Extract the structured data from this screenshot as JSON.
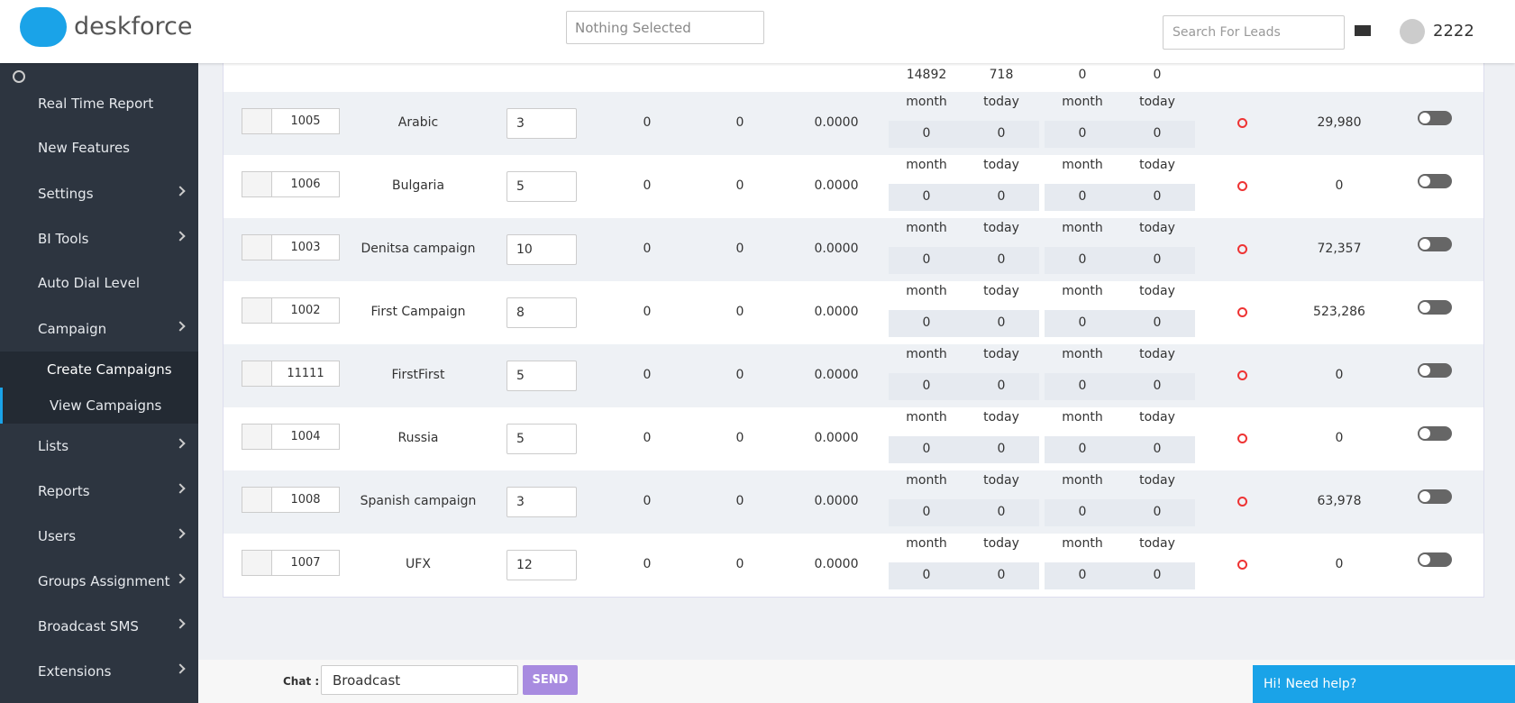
{
  "header": {
    "logo": "deskforce",
    "select": "Nothing Selected",
    "search_placeholder": "Search For Leads",
    "user": "2222"
  },
  "sidebar": {
    "items": [
      {
        "label": "Real Time Report",
        "submenu": false
      },
      {
        "label": "New Features",
        "submenu": false
      },
      {
        "label": "Settings",
        "submenu": true
      },
      {
        "label": "BI Tools",
        "submenu": true
      },
      {
        "label": "Auto Dial Level",
        "submenu": false
      },
      {
        "label": "Campaign",
        "submenu": true
      },
      {
        "label": "Create Campaigns",
        "sub": true
      },
      {
        "label": "View Campaigns",
        "sub": true
      },
      {
        "label": "Lists",
        "submenu": true
      },
      {
        "label": "Reports",
        "submenu": true
      },
      {
        "label": "Users",
        "submenu": true
      },
      {
        "label": "Groups Assignment",
        "submenu": true
      },
      {
        "label": "Broadcast SMS",
        "submenu": true
      },
      {
        "label": "Extensions",
        "submenu": true
      }
    ]
  },
  "table": {
    "sublabels": [
      "month",
      "today",
      "month",
      "today"
    ],
    "partial_row": {
      "values": [
        "14892",
        "718",
        "0",
        "0"
      ]
    },
    "rows": [
      {
        "id": "1005",
        "name": "Arabic",
        "level": "3",
        "c1": "0",
        "c2": "0",
        "c3": "0.0000",
        "v": [
          "0",
          "0",
          "0",
          "0"
        ],
        "leads": "29,980"
      },
      {
        "id": "1006",
        "name": "Bulgaria",
        "level": "5",
        "c1": "0",
        "c2": "0",
        "c3": "0.0000",
        "v": [
          "0",
          "0",
          "0",
          "0"
        ],
        "leads": "0"
      },
      {
        "id": "1003",
        "name": "Denitsa campaign",
        "level": "10",
        "c1": "0",
        "c2": "0",
        "c3": "0.0000",
        "v": [
          "0",
          "0",
          "0",
          "0"
        ],
        "leads": "72,357"
      },
      {
        "id": "1002",
        "name": "First Campaign",
        "level": "8",
        "c1": "0",
        "c2": "0",
        "c3": "0.0000",
        "v": [
          "0",
          "0",
          "0",
          "0"
        ],
        "leads": "523,286"
      },
      {
        "id": "11111",
        "name": "FirstFirst",
        "level": "5",
        "c1": "0",
        "c2": "0",
        "c3": "0.0000",
        "v": [
          "0",
          "0",
          "0",
          "0"
        ],
        "leads": "0"
      },
      {
        "id": "1004",
        "name": "Russia",
        "level": "5",
        "c1": "0",
        "c2": "0",
        "c3": "0.0000",
        "v": [
          "0",
          "0",
          "0",
          "0"
        ],
        "leads": "0"
      },
      {
        "id": "1008",
        "name": "Spanish campaign",
        "level": "3",
        "c1": "0",
        "c2": "0",
        "c3": "0.0000",
        "v": [
          "0",
          "0",
          "0",
          "0"
        ],
        "leads": "63,978"
      },
      {
        "id": "1007",
        "name": "UFX",
        "level": "12",
        "c1": "0",
        "c2": "0",
        "c3": "0.0000",
        "v": [
          "0",
          "0",
          "0",
          "0"
        ],
        "leads": "0"
      }
    ]
  },
  "chat": {
    "label": "Chat :",
    "select": "Broadcast",
    "button": "SEND",
    "help": "Hi! Need help?"
  }
}
